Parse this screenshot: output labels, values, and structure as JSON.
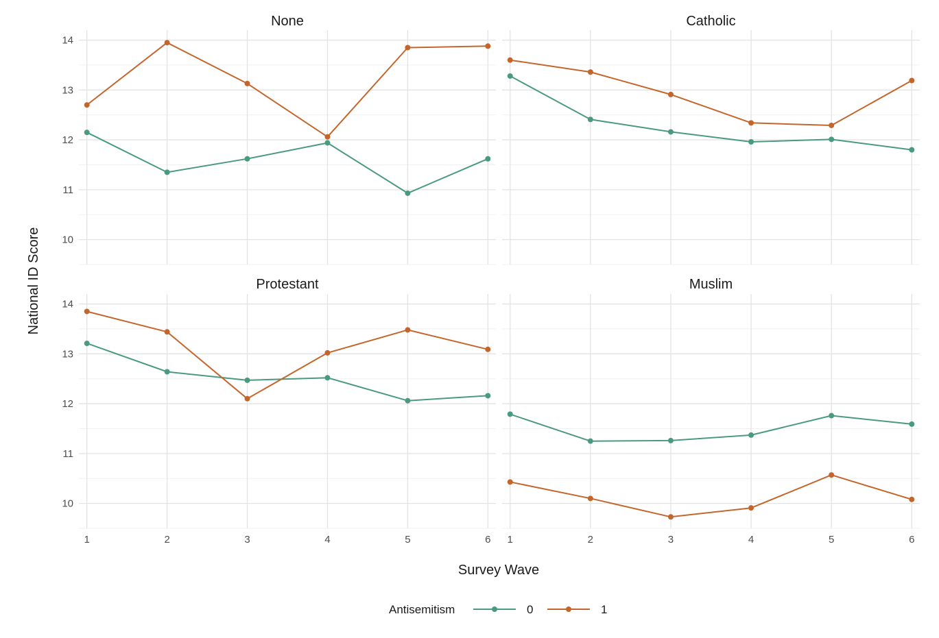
{
  "chart_data": {
    "type": "line",
    "xlabel": "Survey Wave",
    "ylabel": "National ID Score",
    "x": [
      1,
      2,
      3,
      4,
      5,
      6
    ],
    "xlim": [
      0.9,
      6.1
    ],
    "ylim": [
      9.5,
      14.2
    ],
    "y_ticks": [
      10,
      11,
      12,
      13,
      14
    ],
    "grid": true,
    "legend": {
      "title": "Antisemitism",
      "position": "bottom",
      "entries": [
        "0",
        "1"
      ]
    },
    "colors": {
      "0": "#4a9a7f",
      "1": "#c4662c"
    },
    "panels": [
      {
        "title": "None",
        "series": [
          {
            "name": "0",
            "values": [
              12.15,
              11.35,
              11.62,
              11.94,
              10.93,
              11.62
            ]
          },
          {
            "name": "1",
            "values": [
              12.7,
              13.95,
              13.13,
              12.06,
              13.85,
              13.88
            ]
          }
        ]
      },
      {
        "title": "Catholic",
        "series": [
          {
            "name": "0",
            "values": [
              13.28,
              12.41,
              12.16,
              11.96,
              12.01,
              11.8
            ]
          },
          {
            "name": "1",
            "values": [
              13.6,
              13.36,
              12.91,
              12.34,
              12.29,
              13.19
            ]
          }
        ]
      },
      {
        "title": "Protestant",
        "series": [
          {
            "name": "0",
            "values": [
              13.21,
              12.64,
              12.47,
              12.52,
              12.06,
              12.16
            ]
          },
          {
            "name": "1",
            "values": [
              13.85,
              13.44,
              12.1,
              13.02,
              13.48,
              13.09
            ]
          }
        ]
      },
      {
        "title": "Muslim",
        "series": [
          {
            "name": "0",
            "values": [
              11.79,
              11.25,
              11.26,
              11.37,
              11.76,
              11.59
            ]
          },
          {
            "name": "1",
            "values": [
              10.43,
              10.1,
              9.73,
              9.91,
              10.57,
              10.08
            ]
          }
        ]
      }
    ]
  }
}
